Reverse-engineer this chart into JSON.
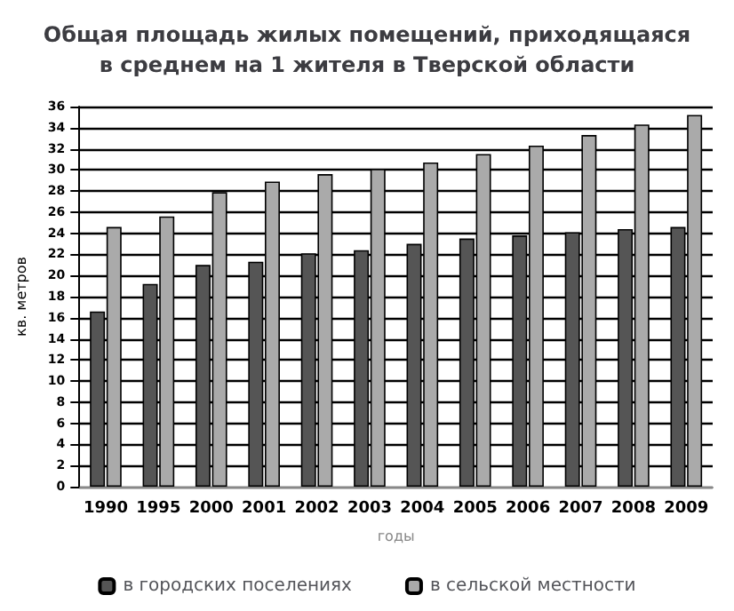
{
  "chart_data": {
    "type": "bar",
    "title": "Общая площадь жилых помещений, приходящаяся\nв среднем на 1 жителя в Тверской области",
    "xlabel": "годы",
    "ylabel": "кв. метров",
    "categories": [
      "1990",
      "1995",
      "2000",
      "2001",
      "2002",
      "2003",
      "2004",
      "2005",
      "2006",
      "2007",
      "2008",
      "2009"
    ],
    "series": [
      {
        "name": "в городских поселениях",
        "color": "#555555",
        "values": [
          16.6,
          19.2,
          21.0,
          21.3,
          22.1,
          22.4,
          23.0,
          23.5,
          23.8,
          24.1,
          24.4,
          24.6
        ]
      },
      {
        "name": "в сельской местности",
        "color": "#aaaaaa",
        "values": [
          24.6,
          25.6,
          27.9,
          28.9,
          29.6,
          30.1,
          30.7,
          31.5,
          32.3,
          33.3,
          34.3,
          35.2
        ]
      }
    ],
    "ylim": [
      0,
      36
    ],
    "yticks": [
      0,
      2,
      4,
      6,
      8,
      10,
      12,
      14,
      16,
      18,
      20,
      22,
      24,
      26,
      28,
      30,
      32,
      34,
      36
    ],
    "grid": "y",
    "legend": "bottom"
  }
}
